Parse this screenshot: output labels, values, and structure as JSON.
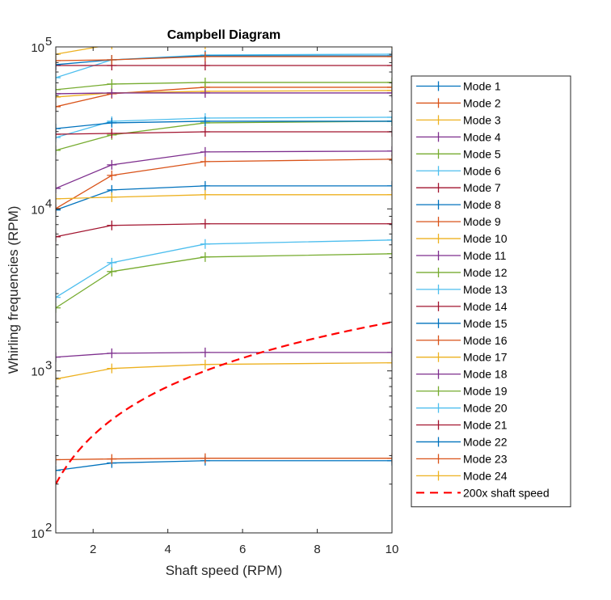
{
  "chart_data": {
    "type": "line",
    "title": "Campbell Diagram",
    "xlabel": "Shaft speed (RPM)",
    "ylabel": "Whirling frequencies (RPM)",
    "xlim": [
      1,
      10
    ],
    "ylim": [
      100,
      100000
    ],
    "yscale": "log",
    "xticks": [
      2,
      4,
      6,
      8,
      10
    ],
    "xtick_labels": [
      "2",
      "4",
      "6",
      "8",
      "10"
    ],
    "yticks": [
      100,
      1000,
      10000,
      100000
    ],
    "ytick_labels": [
      {
        "base": "10",
        "exp": "2"
      },
      {
        "base": "10",
        "exp": "3"
      },
      {
        "base": "10",
        "exp": "4"
      },
      {
        "base": "10",
        "exp": "5"
      }
    ],
    "grid": false,
    "legend_position": "outside-right",
    "x": [
      1,
      2.5,
      5,
      10
    ],
    "series": [
      {
        "name": "Mode 1",
        "color": "#0072BD",
        "values": [
          243,
          270,
          279,
          279
        ]
      },
      {
        "name": "Mode 2",
        "color": "#D95319",
        "values": [
          283,
          286,
          289,
          289
        ]
      },
      {
        "name": "Mode 3",
        "color": "#EDB120",
        "values": [
          891,
          1035,
          1096,
          1122
        ]
      },
      {
        "name": "Mode 4",
        "color": "#7E2F8E",
        "values": [
          1216,
          1285,
          1300,
          1300
        ]
      },
      {
        "name": "Mode 5",
        "color": "#77AC30",
        "values": [
          2449,
          4105,
          5047,
          5285
        ]
      },
      {
        "name": "Mode 6",
        "color": "#4DBEEE",
        "values": [
          2843,
          4657,
          6067,
          6427
        ]
      },
      {
        "name": "Mode 7",
        "color": "#A2142F",
        "values": [
          6730,
          7907,
          8090,
          8090
        ]
      },
      {
        "name": "Mode 8",
        "color": "#0072BD",
        "values": [
          9840,
          13100,
          13870,
          13870
        ]
      },
      {
        "name": "Mode 9",
        "color": "#D95319",
        "values": [
          10050,
          16100,
          19580,
          20270
        ]
      },
      {
        "name": "Mode 10",
        "color": "#EDB120",
        "values": [
          11540,
          11810,
          12230,
          12230
        ]
      },
      {
        "name": "Mode 11",
        "color": "#7E2F8E",
        "values": [
          13390,
          18700,
          22480,
          22740
        ]
      },
      {
        "name": "Mode 12",
        "color": "#77AC30",
        "values": [
          23000,
          28600,
          33970,
          34750
        ]
      },
      {
        "name": "Mode 13",
        "color": "#4DBEEE",
        "values": [
          27600,
          34750,
          36380,
          36800
        ]
      },
      {
        "name": "Mode 14",
        "color": "#A2142F",
        "values": [
          28900,
          29240,
          29920,
          29920
        ]
      },
      {
        "name": "Mode 15",
        "color": "#0072BD",
        "values": [
          31330,
          33970,
          34750,
          34750
        ]
      },
      {
        "name": "Mode 16",
        "color": "#D95319",
        "values": [
          42750,
          51380,
          56330,
          56330
        ]
      },
      {
        "name": "Mode 17",
        "color": "#EDB120",
        "values": [
          49080,
          51980,
          53190,
          53800
        ]
      },
      {
        "name": "Mode 18",
        "color": "#7E2F8E",
        "values": [
          51380,
          51980,
          51980,
          51980
        ]
      },
      {
        "name": "Mode 19",
        "color": "#77AC30",
        "values": [
          54440,
          58970,
          60350,
          60350
        ]
      },
      {
        "name": "Mode 20",
        "color": "#4DBEEE",
        "values": [
          64570,
          83190,
          89150,
          90170
        ]
      },
      {
        "name": "Mode 21",
        "color": "#A2142F",
        "values": [
          76790,
          76790,
          76790,
          76790
        ]
      },
      {
        "name": "Mode 22",
        "color": "#0072BD",
        "values": [
          77690,
          83190,
          88120,
          88120
        ]
      },
      {
        "name": "Mode 23",
        "color": "#D95319",
        "values": [
          82260,
          83190,
          87100,
          87100
        ]
      },
      {
        "name": "Mode 24",
        "color": "#EDB120",
        "values": [
          90170,
          103500,
          103500,
          103500
        ]
      }
    ],
    "reference_line": {
      "name": "200x shaft speed",
      "color": "#FF0000",
      "style": "dashed",
      "multiplier": 200
    }
  }
}
